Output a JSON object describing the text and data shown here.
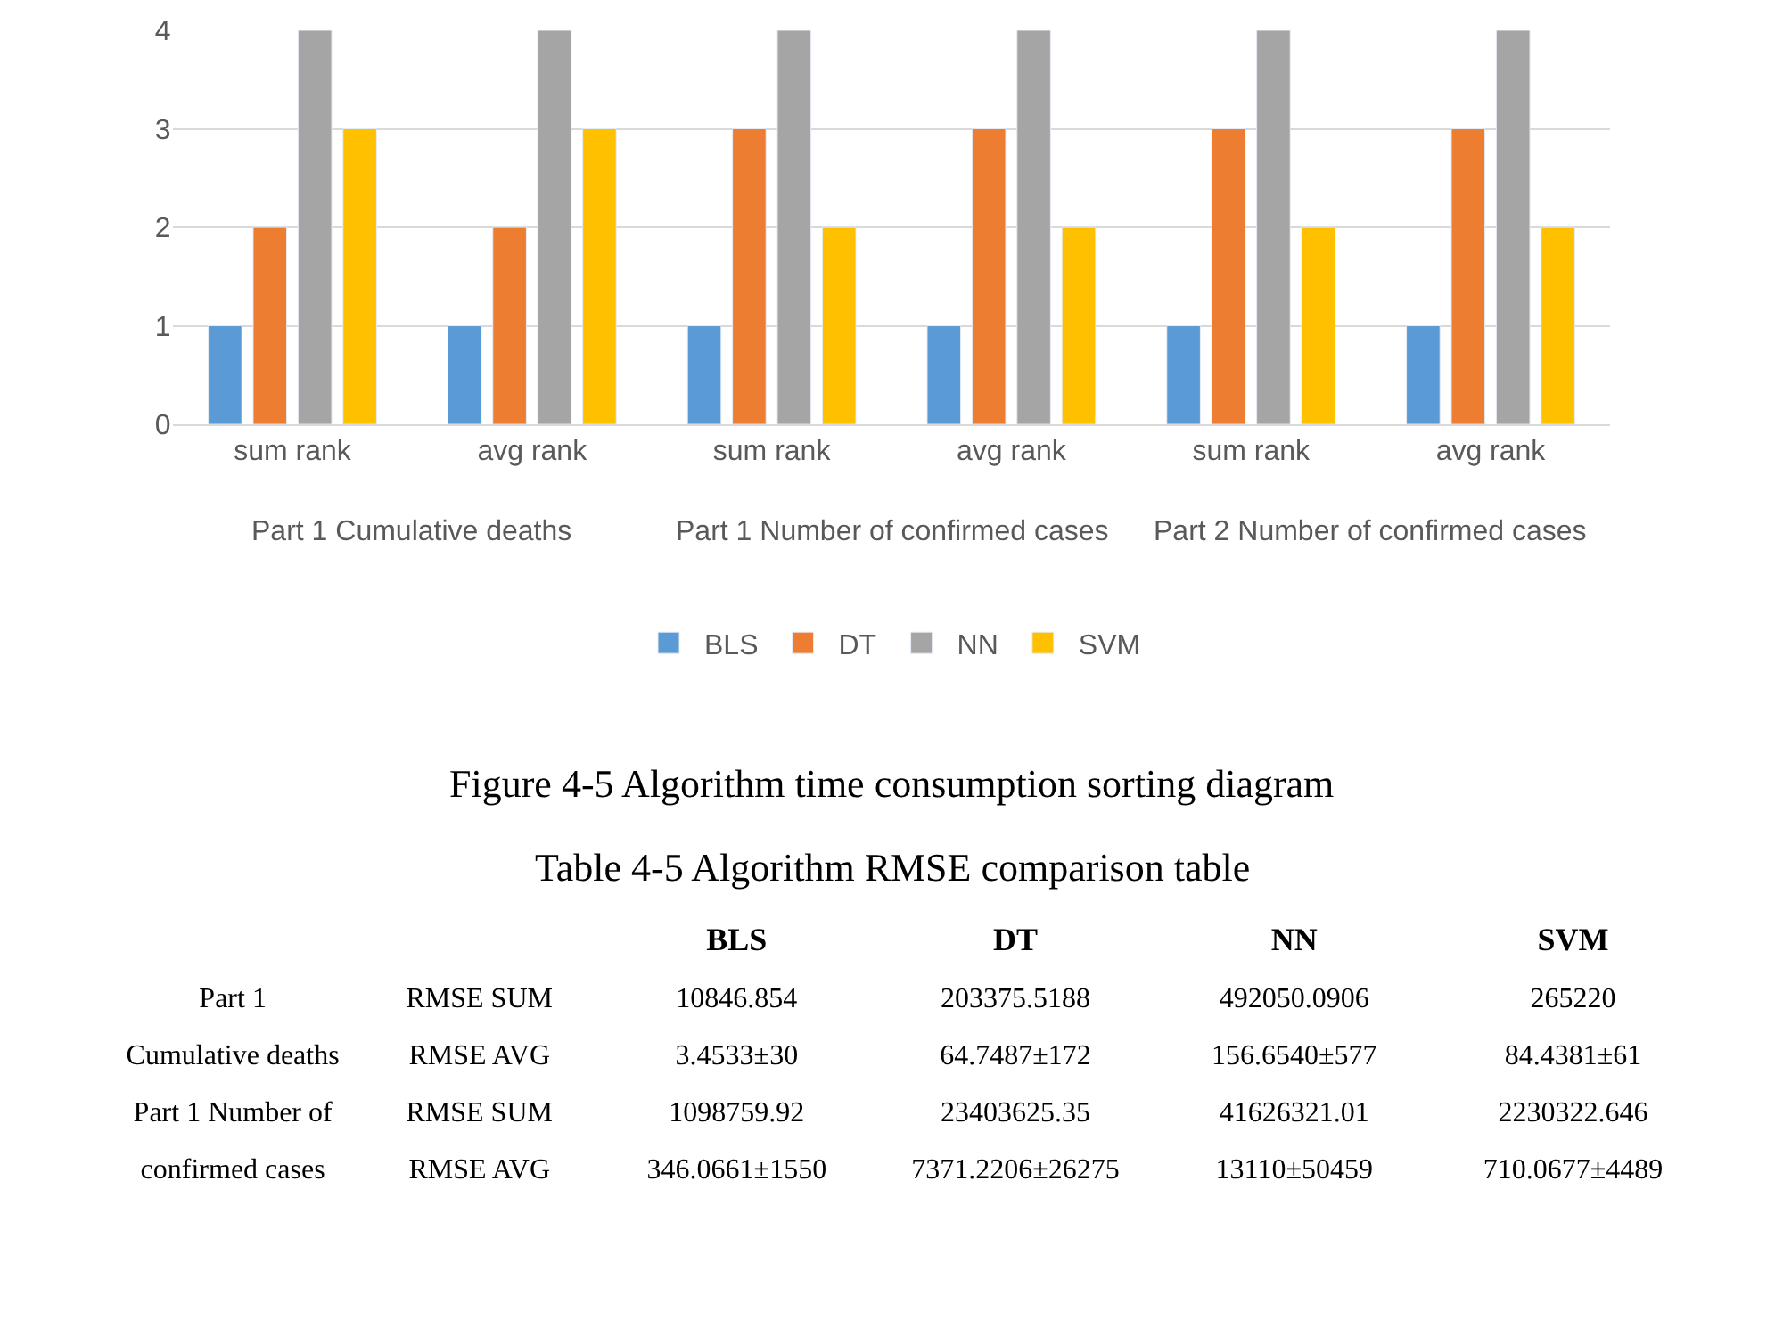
{
  "chart_data": [
    {
      "type": "bar",
      "title": "Figure 4-5 Algorithm time consumption sorting diagram",
      "categories": [
        "sum rank",
        "avg rank",
        "sum rank",
        "avg rank",
        "sum rank",
        "avg rank"
      ],
      "annotations": [
        "Part 1 Cumulative deaths",
        "Part 1 Number of confirmed cases",
        "Part 2 Number of confirmed cases"
      ],
      "series": [
        {
          "name": "BLS",
          "color": "#5b9bd5",
          "values": [
            1,
            1,
            1,
            1,
            1,
            1
          ]
        },
        {
          "name": "DT",
          "color": "#ed7d31",
          "values": [
            2,
            2,
            3,
            3,
            3,
            3
          ]
        },
        {
          "name": "NN",
          "color": "#a5a5a5",
          "values": [
            4,
            4,
            4,
            4,
            4,
            4
          ]
        },
        {
          "name": "SVM",
          "color": "#ffc000",
          "values": [
            3,
            3,
            2,
            2,
            2,
            2
          ]
        }
      ],
      "ylim": [
        0,
        4
      ],
      "yticks": [
        0,
        1,
        2,
        3,
        4
      ],
      "grid": "y",
      "legend": "bottom"
    },
    {
      "type": "other",
      "title": "Table 4-5 Algorithm RMSE comparison table",
      "categories": [
        null,
        null,
        "BLS",
        "DT",
        "NN",
        "SVM"
      ],
      "cell_labels": [
        [
          "Part 1",
          "RMSE SUM",
          "10846.854",
          "203375.5188",
          "492050.0906",
          "265220"
        ],
        [
          "Cumulative deaths",
          "RMSE AVG",
          "3.4533±30",
          "64.7487±172",
          "156.6540±577",
          "84.4381±61"
        ],
        [
          "Part 1 Number of",
          "RMSE SUM",
          "1098759.92",
          "23403625.35",
          "41626321.01",
          "2230322.646"
        ],
        [
          "confirmed cases",
          "RMSE AVG",
          "346.0661±1550",
          "7371.2206±26275",
          "13110±50459",
          "710.0677±4489"
        ]
      ]
    }
  ]
}
